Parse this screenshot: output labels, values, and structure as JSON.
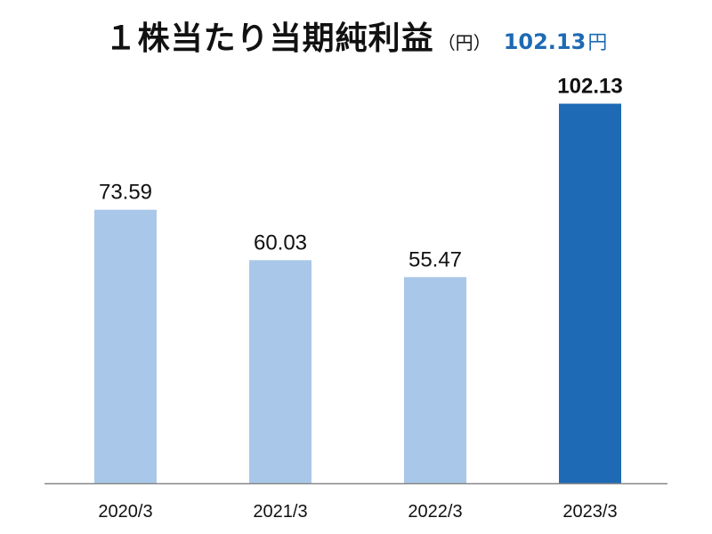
{
  "title": {
    "text": "１株当たり当期純利益",
    "unit": "（円）",
    "highlight_value": "102.13",
    "highlight_unit": "円"
  },
  "colors": {
    "past_bar": "#a9c7e8",
    "latest_bar": "#1e6ab4",
    "axis": "#888888",
    "highlight": "#1e6ab4"
  },
  "chart_data": {
    "type": "bar",
    "title": "１株当たり当期純利益",
    "unit": "円",
    "categories": [
      "2020/3",
      "2021/3",
      "2022/3",
      "2023/3"
    ],
    "values": [
      73.59,
      60.03,
      55.47,
      102.13
    ],
    "value_labels": [
      "73.59",
      "60.03",
      "55.47",
      "102.13"
    ],
    "highlighted_category": "2023/3",
    "ylim": [
      0,
      110
    ],
    "grid": false,
    "legend": "none"
  }
}
